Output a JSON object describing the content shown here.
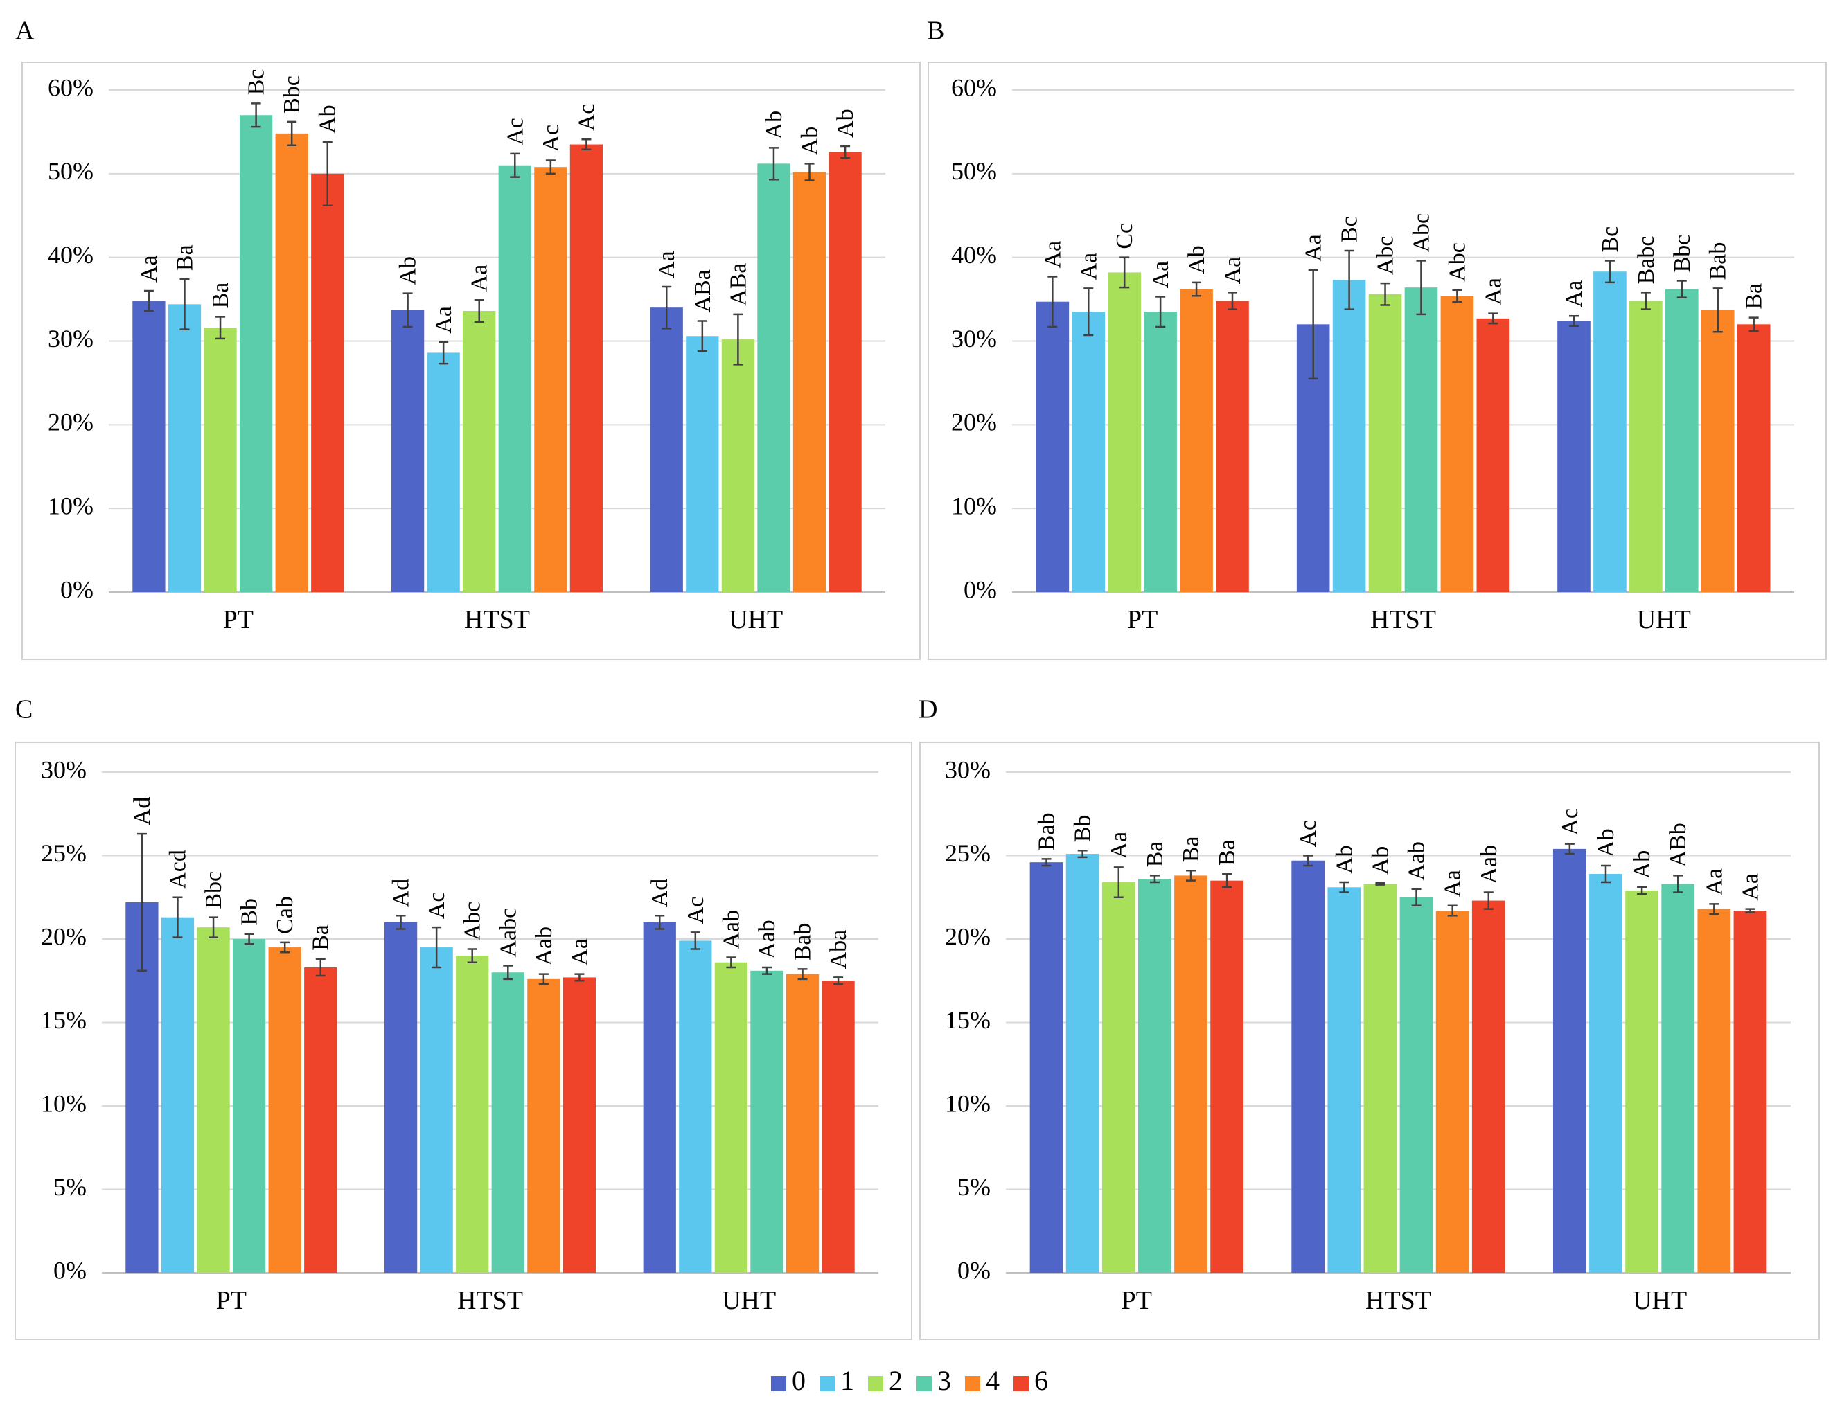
{
  "chart_data": [
    {
      "panel": "A",
      "type": "bar",
      "categories": [
        "PT",
        "HTST",
        "UHT"
      ],
      "yticks": [
        "0%",
        "10%",
        "20%",
        "30%",
        "40%",
        "50%",
        "60%"
      ],
      "ylim": [
        0,
        60
      ],
      "series": [
        {
          "name": "0",
          "color": "#5065c8",
          "values": [
            34.8,
            33.7,
            34.0
          ],
          "errors": [
            1.2,
            2.0,
            2.5
          ],
          "labels": [
            "Aa",
            "Ab",
            "Aa"
          ]
        },
        {
          "name": "1",
          "color": "#5bc7ef",
          "values": [
            34.4,
            28.6,
            30.6
          ],
          "errors": [
            3.0,
            1.3,
            1.8
          ],
          "labels": [
            "Ba",
            "Aa",
            "ABa"
          ]
        },
        {
          "name": "2",
          "color": "#a8e05a",
          "values": [
            31.6,
            33.6,
            30.2
          ],
          "errors": [
            1.3,
            1.3,
            3.0
          ],
          "labels": [
            "Ba",
            "Aa",
            "ABa"
          ]
        },
        {
          "name": "3",
          "color": "#5ccdaa",
          "values": [
            57.0,
            51.0,
            51.2
          ],
          "errors": [
            1.4,
            1.4,
            1.9
          ],
          "labels": [
            "Bc",
            "Ac",
            "Ab"
          ]
        },
        {
          "name": "4",
          "color": "#fb8525",
          "values": [
            54.8,
            50.8,
            50.2
          ],
          "errors": [
            1.4,
            0.8,
            1.0
          ],
          "labels": [
            "Bbc",
            "Ac",
            "Ab"
          ]
        },
        {
          "name": "6",
          "color": "#f0442a",
          "values": [
            50.0,
            53.5,
            52.6
          ],
          "errors": [
            3.8,
            0.6,
            0.7
          ],
          "labels": [
            "Ab",
            "Ac",
            "Ab"
          ]
        }
      ]
    },
    {
      "panel": "B",
      "type": "bar",
      "categories": [
        "PT",
        "HTST",
        "UHT"
      ],
      "yticks": [
        "0%",
        "10%",
        "20%",
        "30%",
        "40%",
        "50%",
        "60%"
      ],
      "ylim": [
        0,
        60
      ],
      "series": [
        {
          "name": "0",
          "color": "#5065c8",
          "values": [
            34.7,
            32.0,
            32.4
          ],
          "errors": [
            3.0,
            6.5,
            0.6
          ],
          "labels": [
            "Aa",
            "Aa",
            "Aa"
          ]
        },
        {
          "name": "1",
          "color": "#5bc7ef",
          "values": [
            33.5,
            37.3,
            38.3
          ],
          "errors": [
            2.8,
            3.5,
            1.3
          ],
          "labels": [
            "Aa",
            "Bc",
            "Bc"
          ]
        },
        {
          "name": "2",
          "color": "#a8e05a",
          "values": [
            38.2,
            35.6,
            34.8
          ],
          "errors": [
            1.8,
            1.3,
            1.0
          ],
          "labels": [
            "Cc",
            "Abc",
            "Babc"
          ]
        },
        {
          "name": "3",
          "color": "#5ccdaa",
          "values": [
            33.5,
            36.4,
            36.2
          ],
          "errors": [
            1.8,
            3.2,
            1.0
          ],
          "labels": [
            "Aa",
            "Abc",
            "Bbc"
          ]
        },
        {
          "name": "4",
          "color": "#fb8525",
          "values": [
            36.2,
            35.4,
            33.7
          ],
          "errors": [
            0.8,
            0.7,
            2.6
          ],
          "labels": [
            "Ab",
            "Abc",
            "Bab"
          ]
        },
        {
          "name": "6",
          "color": "#f0442a",
          "values": [
            34.8,
            32.7,
            32.0
          ],
          "errors": [
            1.0,
            0.6,
            0.8
          ],
          "labels": [
            "Aa",
            "Aa",
            "Ba"
          ]
        }
      ]
    },
    {
      "panel": "C",
      "type": "bar",
      "categories": [
        "PT",
        "HTST",
        "UHT"
      ],
      "yticks": [
        "0%",
        "5%",
        "10%",
        "15%",
        "20%",
        "25%",
        "30%"
      ],
      "ylim": [
        0,
        30
      ],
      "series": [
        {
          "name": "0",
          "color": "#5065c8",
          "values": [
            22.2,
            21.0,
            21.0
          ],
          "errors": [
            4.1,
            0.4,
            0.4
          ],
          "labels": [
            "Ad",
            "Ad",
            "Ad"
          ]
        },
        {
          "name": "1",
          "color": "#5bc7ef",
          "values": [
            21.3,
            19.5,
            19.9
          ],
          "errors": [
            1.2,
            1.2,
            0.5
          ],
          "labels": [
            "Acd",
            "Ac",
            "Ac"
          ]
        },
        {
          "name": "2",
          "color": "#a8e05a",
          "values": [
            20.7,
            19.0,
            18.6
          ],
          "errors": [
            0.6,
            0.4,
            0.3
          ],
          "labels": [
            "Bbc",
            "Abc",
            "Aab"
          ]
        },
        {
          "name": "3",
          "color": "#5ccdaa",
          "values": [
            20.0,
            18.0,
            18.1
          ],
          "errors": [
            0.3,
            0.4,
            0.2
          ],
          "labels": [
            "Bb",
            "Aabc",
            "Aab"
          ]
        },
        {
          "name": "4",
          "color": "#fb8525",
          "values": [
            19.5,
            17.6,
            17.9
          ],
          "errors": [
            0.3,
            0.3,
            0.3
          ],
          "labels": [
            "Cab",
            "Aab",
            "Bab"
          ]
        },
        {
          "name": "6",
          "color": "#f0442a",
          "values": [
            18.3,
            17.7,
            17.5
          ],
          "errors": [
            0.5,
            0.2,
            0.2
          ],
          "labels": [
            "Ba",
            "Aa",
            "Aba"
          ]
        }
      ]
    },
    {
      "panel": "D",
      "type": "bar",
      "categories": [
        "PT",
        "HTST",
        "UHT"
      ],
      "yticks": [
        "0%",
        "5%",
        "10%",
        "15%",
        "20%",
        "25%",
        "30%"
      ],
      "ylim": [
        0,
        30
      ],
      "series": [
        {
          "name": "0",
          "color": "#5065c8",
          "values": [
            24.6,
            24.7,
            25.4
          ],
          "errors": [
            0.2,
            0.3,
            0.3
          ],
          "labels": [
            "Bab",
            "Ac",
            "Ac"
          ]
        },
        {
          "name": "1",
          "color": "#5bc7ef",
          "values": [
            25.1,
            23.1,
            23.9
          ],
          "errors": [
            0.2,
            0.3,
            0.5
          ],
          "labels": [
            "Bb",
            "Ab",
            "Ab"
          ]
        },
        {
          "name": "2",
          "color": "#a8e05a",
          "values": [
            23.4,
            23.3,
            22.9
          ],
          "errors": [
            0.9,
            0.05,
            0.2
          ],
          "labels": [
            "Aa",
            "Ab",
            "Ab"
          ]
        },
        {
          "name": "3",
          "color": "#5ccdaa",
          "values": [
            23.6,
            22.5,
            23.3
          ],
          "errors": [
            0.2,
            0.5,
            0.5
          ],
          "labels": [
            "Ba",
            "Aab",
            "ABb"
          ]
        },
        {
          "name": "4",
          "color": "#fb8525",
          "values": [
            23.8,
            21.7,
            21.8
          ],
          "errors": [
            0.3,
            0.3,
            0.3
          ],
          "labels": [
            "Ba",
            "Aa",
            "Aa"
          ]
        },
        {
          "name": "6",
          "color": "#f0442a",
          "values": [
            23.5,
            22.3,
            21.7
          ],
          "errors": [
            0.4,
            0.5,
            0.1
          ],
          "labels": [
            "Ba",
            "Aab",
            "Aa"
          ]
        }
      ]
    }
  ],
  "legend": [
    {
      "label": "0",
      "color": "#5065c8"
    },
    {
      "label": "1",
      "color": "#5bc7ef"
    },
    {
      "label": "2",
      "color": "#a8e05a"
    },
    {
      "label": "3",
      "color": "#5ccdaa"
    },
    {
      "label": "4",
      "color": "#fb8525"
    },
    {
      "label": "6",
      "color": "#f0442a"
    }
  ]
}
